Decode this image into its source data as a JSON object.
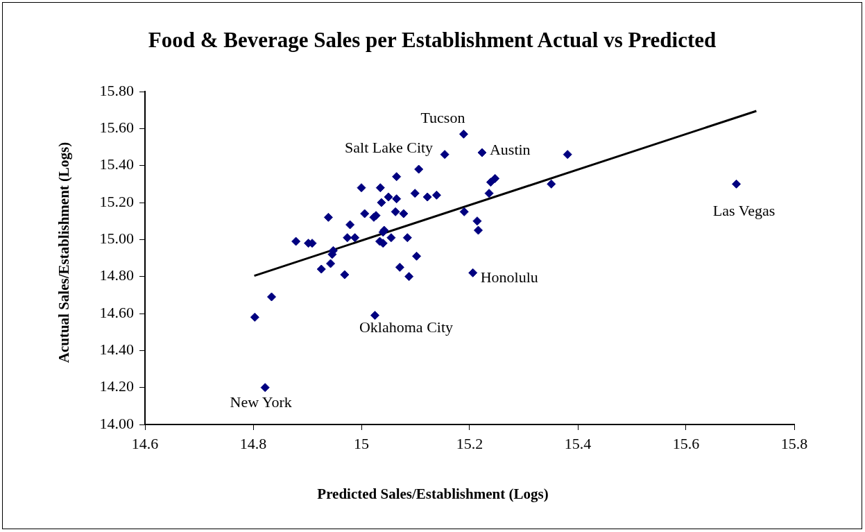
{
  "chart_data": {
    "type": "scatter",
    "title": "Food & Beverage Sales per Establishment Actual vs Predicted",
    "xlabel": "Predicted Sales/Establishment (Logs)",
    "ylabel": "Acutual Sales/Establishment (Logs)",
    "series": [
      {
        "color": "#000080",
        "marker": "diamond",
        "x": [
          14.803,
          14.834,
          15.025,
          14.879,
          14.902,
          14.909,
          14.939,
          14.979,
          14.974,
          14.988,
          14.948,
          14.946,
          14.943,
          14.926,
          14.969,
          15.006,
          15.023,
          15.027,
          15.037,
          15.05,
          15.065,
          15.063,
          15.078,
          15.042,
          15.04,
          15.034,
          15.04,
          15.055,
          15.085,
          15.102,
          15.071,
          15.088,
          15.189,
          15.154,
          15.223,
          15.381,
          15.106,
          15.065,
          15.099,
          15.122,
          15.139,
          15.247,
          15.239,
          15.236,
          15.351,
          15.19,
          15.214,
          15.216,
          15.206,
          15.693,
          14.822,
          15.0,
          15.035
        ],
        "values": [
          14.58,
          14.69,
          14.59,
          14.99,
          14.98,
          14.98,
          15.12,
          15.08,
          15.01,
          15.01,
          14.94,
          14.92,
          14.87,
          14.84,
          14.81,
          15.14,
          15.12,
          15.13,
          15.2,
          15.23,
          15.22,
          15.15,
          15.14,
          15.05,
          15.04,
          14.99,
          14.98,
          15.01,
          15.01,
          14.91,
          14.85,
          14.8,
          15.57,
          15.46,
          15.47,
          15.46,
          15.38,
          15.34,
          15.25,
          15.23,
          15.24,
          15.33,
          15.31,
          15.25,
          15.3,
          15.15,
          15.1,
          15.05,
          14.82,
          15.3,
          14.2,
          15.28,
          15.28
        ]
      },
      {
        "type": "line",
        "color": "#000000",
        "marker": "none",
        "line_style": "solid",
        "x": [
          14.802,
          15.73
        ],
        "values": [
          14.804,
          15.695
        ]
      }
    ],
    "annotations": [
      {
        "text": "Tucson",
        "x": 15.189,
        "y": 15.57
      },
      {
        "text": "Salt Lake City",
        "x": 15.154,
        "y": 15.46
      },
      {
        "text": "Austin",
        "x": 15.223,
        "y": 15.47
      },
      {
        "text": "Las Vegas",
        "x": 15.693,
        "y": 15.3
      },
      {
        "text": "Honolulu",
        "x": 15.206,
        "y": 14.82
      },
      {
        "text": "Oklahoma City",
        "x": 15.025,
        "y": 14.59
      },
      {
        "text": "New York",
        "x": 14.822,
        "y": 14.2
      }
    ],
    "xlim": [
      14.6,
      15.8
    ],
    "xticks": [
      14.6,
      14.8,
      15,
      15.2,
      15.4,
      15.6,
      15.8
    ],
    "ylim": [
      14.0,
      15.8
    ],
    "yticks": [
      {
        "value": 14.0,
        "label": "14.00"
      },
      {
        "value": 14.2,
        "label": "14.20"
      },
      {
        "value": 14.4,
        "label": "14.40"
      },
      {
        "value": 14.6,
        "label": "14.60"
      },
      {
        "value": 14.8,
        "label": "14.80"
      },
      {
        "value": 15.0,
        "label": "15.00"
      },
      {
        "value": 15.2,
        "label": "15.20"
      },
      {
        "value": 15.4,
        "label": "15.40"
      },
      {
        "value": 15.6,
        "label": "15.60"
      },
      {
        "value": 15.8,
        "label": "15.80"
      }
    ],
    "grid": false,
    "legend": false
  }
}
